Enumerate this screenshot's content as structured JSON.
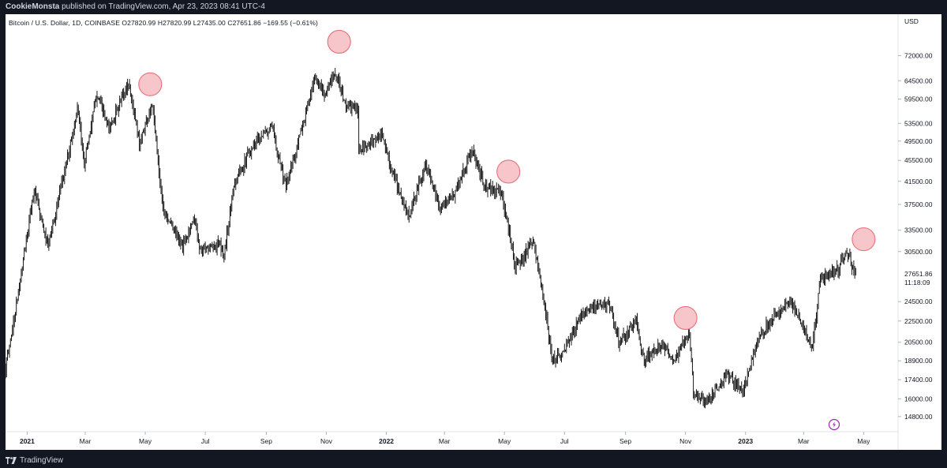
{
  "header": {
    "user": "CookieMonsta",
    "text": " published on TradingView.com, Apr 23, 2023 08:41 UTC-4"
  },
  "footer": {
    "brand": "TradingView"
  },
  "icons": {
    "brand_logo": "tradingview-logo-icon",
    "alert": "lightning-bolt-icon"
  },
  "colors": {
    "candles": "#000000",
    "markers_fill": "#f7c6cb",
    "markers_stroke": "#e8707c",
    "background_frame": "#131722"
  },
  "chart_data": {
    "type": "candlestick",
    "symbol_line": "Bitcoin / U.S. Dollar, 1D, COINBASE  O27820.99  H27820.99  L27435.00  C27651.86  −169.55 (−0.61%)",
    "currency_label": "USD",
    "y_scale": "log",
    "y_range": [
      13900,
      80000
    ],
    "y_ticks": [
      72000.0,
      64500.0,
      59500.0,
      53500.0,
      49500.0,
      45500.0,
      41500.0,
      37500.0,
      33500.0,
      30500.0,
      24500.0,
      22500.0,
      20500.0,
      18900.0,
      17400.0,
      16000.0,
      14800.0
    ],
    "y_tick_labels": [
      "72000.00",
      "64500.00",
      "59500.00",
      "53500.00",
      "49500.00",
      "45500.00",
      "41500.00",
      "37500.00",
      "33500.00",
      "30500.00",
      "24500.00",
      "22500.00",
      "20500.00",
      "18900.00",
      "17400.00",
      "16000.00",
      "14800.00"
    ],
    "last_price": {
      "value": 27651.86,
      "label": "27651.86",
      "countdown": "11:18:09"
    },
    "x_range": [
      "2020-12-10",
      "2023-06-05"
    ],
    "x_ticks": [
      {
        "date": "2021-01-01",
        "label": "2021",
        "bold": true
      },
      {
        "date": "2021-03-01",
        "label": "Mar"
      },
      {
        "date": "2021-05-01",
        "label": "May"
      },
      {
        "date": "2021-07-01",
        "label": "Jul"
      },
      {
        "date": "2021-09-01",
        "label": "Sep"
      },
      {
        "date": "2021-11-01",
        "label": "Nov"
      },
      {
        "date": "2022-01-01",
        "label": "2022",
        "bold": true
      },
      {
        "date": "2022-03-01",
        "label": "Mar"
      },
      {
        "date": "2022-05-01",
        "label": "May"
      },
      {
        "date": "2022-07-01",
        "label": "Jul"
      },
      {
        "date": "2022-09-01",
        "label": "Sep"
      },
      {
        "date": "2022-11-01",
        "label": "Nov"
      },
      {
        "date": "2023-01-01",
        "label": "2023",
        "bold": true
      },
      {
        "date": "2023-03-01",
        "label": "Mar"
      },
      {
        "date": "2023-05-01",
        "label": "May"
      }
    ],
    "price_path": [
      [
        "2020-12-10",
        18300
      ],
      [
        "2020-12-20",
        23500
      ],
      [
        "2021-01-08",
        40000
      ],
      [
        "2021-01-22",
        31000
      ],
      [
        "2021-02-10",
        45000
      ],
      [
        "2021-02-21",
        57000
      ],
      [
        "2021-02-28",
        45000
      ],
      [
        "2021-03-13",
        61000
      ],
      [
        "2021-03-25",
        52000
      ],
      [
        "2021-04-14",
        64000
      ],
      [
        "2021-04-25",
        49000
      ],
      [
        "2021-05-08",
        58000
      ],
      [
        "2021-05-19",
        37000
      ],
      [
        "2021-06-08",
        31000
      ],
      [
        "2021-06-20",
        35500
      ],
      [
        "2021-06-26",
        30500
      ],
      [
        "2021-07-15",
        31500
      ],
      [
        "2021-07-20",
        29800
      ],
      [
        "2021-07-30",
        41000
      ],
      [
        "2021-08-14",
        47000
      ],
      [
        "2021-08-23",
        50000
      ],
      [
        "2021-09-07",
        52500
      ],
      [
        "2021-09-21",
        40500
      ],
      [
        "2021-10-01",
        47500
      ],
      [
        "2021-10-20",
        64500
      ],
      [
        "2021-11-01",
        61000
      ],
      [
        "2021-11-10",
        67500
      ],
      [
        "2021-11-20",
        58000
      ],
      [
        "2021-12-03",
        57000
      ],
      [
        "2021-12-04",
        47000
      ],
      [
        "2021-12-27",
        51000
      ],
      [
        "2022-01-10",
        41500
      ],
      [
        "2022-01-24",
        35500
      ],
      [
        "2022-02-10",
        45000
      ],
      [
        "2022-02-24",
        37000
      ],
      [
        "2022-03-10",
        39000
      ],
      [
        "2022-03-29",
        47500
      ],
      [
        "2022-04-11",
        40500
      ],
      [
        "2022-04-28",
        39500
      ],
      [
        "2022-05-09",
        31000
      ],
      [
        "2022-05-12",
        28500
      ],
      [
        "2022-05-31",
        31700
      ],
      [
        "2022-06-13",
        22500
      ],
      [
        "2022-06-18",
        19000
      ],
      [
        "2022-06-30",
        19500
      ],
      [
        "2022-07-20",
        23500
      ],
      [
        "2022-08-14",
        24400
      ],
      [
        "2022-08-26",
        20500
      ],
      [
        "2022-09-12",
        22500
      ],
      [
        "2022-09-20",
        18900
      ],
      [
        "2022-10-06",
        20300
      ],
      [
        "2022-10-21",
        19000
      ],
      [
        "2022-11-05",
        21300
      ],
      [
        "2022-11-09",
        16500
      ],
      [
        "2022-11-21",
        15700
      ],
      [
        "2022-12-14",
        17800
      ],
      [
        "2022-12-30",
        16550
      ],
      [
        "2023-01-14",
        21000
      ],
      [
        "2023-01-31",
        23100
      ],
      [
        "2023-02-16",
        24600
      ],
      [
        "2023-03-10",
        20000
      ],
      [
        "2023-03-18",
        27000
      ],
      [
        "2023-04-05",
        28300
      ],
      [
        "2023-04-14",
        30400
      ],
      [
        "2023-04-23",
        27651
      ]
    ],
    "markers": [
      {
        "date": "2021-05-06",
        "value": 63500
      },
      {
        "date": "2021-11-14",
        "value": 76500
      },
      {
        "date": "2022-05-05",
        "value": 43300
      },
      {
        "date": "2022-11-01",
        "value": 22800
      },
      {
        "date": "2023-05-01",
        "value": 32200
      }
    ]
  }
}
